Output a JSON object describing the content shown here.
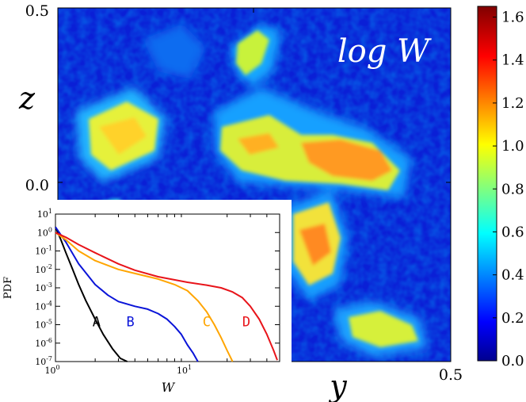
{
  "colors": {
    "curve_A": "#000000",
    "curve_B": "#0a14d8",
    "curve_C": "#ffa500",
    "curve_D": "#e8141a",
    "cmap_low": "#00008f",
    "cmap_high": "#800000"
  },
  "main_map": {
    "overlay_label": "log W",
    "y_axis_label": "z",
    "x_axis_label": "y",
    "y_ticks": [
      "0.5",
      "0.0"
    ],
    "x_ticks": [
      "0.5"
    ]
  },
  "chart_data": [
    {
      "type": "heatmap",
      "title": "log W",
      "xlabel": "y",
      "ylabel": "z",
      "xlim": [
        -0.5,
        0.5
      ],
      "ylim": [
        -0.5,
        0.5
      ],
      "colorbar": {
        "range": [
          0.0,
          1.65
        ],
        "ticks": [
          "0.0",
          "0.2",
          "0.4",
          "0.6",
          "0.8",
          "1.0",
          "1.2",
          "1.4",
          "1.6"
        ]
      }
    },
    {
      "type": "line",
      "xlabel": "W",
      "ylabel": "PDF",
      "xscale": "log",
      "yscale": "log",
      "xlim": [
        1,
        50
      ],
      "ylim": [
        1e-07,
        10
      ],
      "x_tick_labels": [
        "10^0",
        "10^1"
      ],
      "y_tick_labels": [
        "10^1",
        "10^0",
        "10^-1",
        "10^-2",
        "10^-3",
        "10^-4",
        "10^-5",
        "10^-6",
        "10^-7"
      ],
      "series": [
        {
          "name": "A",
          "color": "#000000",
          "x": [
            1.0,
            1.1,
            1.2,
            1.35,
            1.5,
            1.7,
            2.0,
            2.3,
            2.7,
            3.1,
            3.5
          ],
          "y": [
            2.0,
            0.4,
            0.08,
            0.01,
            0.0015,
            0.0002,
            2e-05,
            3e-06,
            5e-07,
            1.5e-07,
            1e-07
          ]
        },
        {
          "name": "B",
          "color": "#0a14d8",
          "x": [
            1.0,
            1.2,
            1.5,
            2.0,
            2.5,
            3.0,
            4.0,
            5.0,
            6.0,
            7.0,
            8.0,
            9.0,
            10.0,
            11.0,
            12.0
          ],
          "y": [
            2.0,
            0.3,
            0.02,
            0.0015,
            0.0004,
            0.00018,
            0.0001,
            7e-05,
            4e-05,
            2e-05,
            8e-06,
            3e-06,
            8e-07,
            3e-07,
            1e-07
          ]
        },
        {
          "name": "C",
          "color": "#ffa500",
          "x": [
            1.0,
            1.2,
            1.5,
            2.0,
            3.0,
            4.0,
            6.0,
            8.0,
            10.0,
            12.0,
            14.0,
            16.0,
            18.0,
            20.0,
            22.0
          ],
          "y": [
            1.0,
            0.4,
            0.1,
            0.03,
            0.01,
            0.006,
            0.003,
            0.0015,
            0.0007,
            0.0002,
            5e-05,
            1e-05,
            2e-06,
            4e-07,
            1e-07
          ]
        },
        {
          "name": "D",
          "color": "#e8141a",
          "x": [
            1.0,
            1.2,
            1.5,
            2.0,
            3.0,
            4.0,
            6.0,
            10.0,
            14.0,
            18.0,
            22.0,
            26.0,
            30.0,
            35.0,
            40.0,
            45.0,
            48.0
          ],
          "y": [
            1.0,
            0.55,
            0.22,
            0.08,
            0.02,
            0.009,
            0.004,
            0.002,
            0.0014,
            0.001,
            0.0006,
            0.0003,
            0.0001,
            2e-05,
            3e-06,
            4e-07,
            1.2e-07
          ]
        }
      ],
      "curve_labels": [
        {
          "text": "A",
          "x": 2.05,
          "y": 1.5e-05
        },
        {
          "text": "B",
          "x": 3.7,
          "y": 1.5e-05
        },
        {
          "text": "C",
          "x": 14.0,
          "y": 1.5e-05
        },
        {
          "text": "D",
          "x": 28.0,
          "y": 1.5e-05
        }
      ]
    }
  ]
}
